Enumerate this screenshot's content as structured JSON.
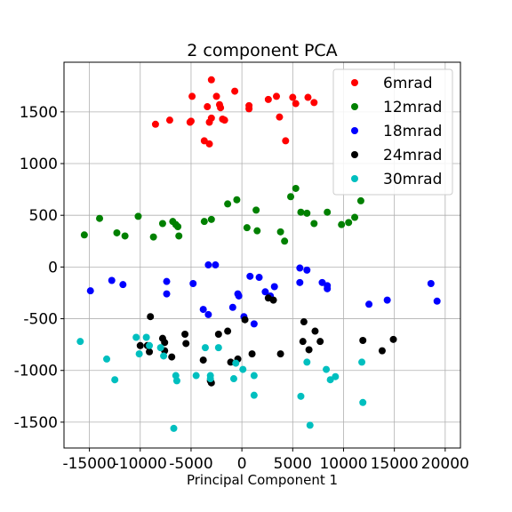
{
  "chart_data": {
    "type": "scatter",
    "title": "2 component PCA",
    "xlabel": "Principal Component 1",
    "ylabel": "",
    "xlim": [
      -17500,
      21500
    ],
    "ylim": [
      -1750,
      1980
    ],
    "xticks": [
      -15000,
      -10000,
      -5000,
      0,
      5000,
      10000,
      15000,
      20000
    ],
    "yticks": [
      -1500,
      -1000,
      -500,
      0,
      500,
      1000,
      1500
    ],
    "grid": true,
    "legend_position": "top-right",
    "series": [
      {
        "name": "6mrad",
        "color": "#ff0000",
        "points": [
          [
            -3000,
            1810
          ],
          [
            -8500,
            1380
          ],
          [
            -7100,
            1420
          ],
          [
            -5000,
            1410
          ],
          [
            -4900,
            1650
          ],
          [
            -3700,
            1220
          ],
          [
            -3400,
            1550
          ],
          [
            -3200,
            1400
          ],
          [
            -3200,
            1190
          ],
          [
            -3000,
            1440
          ],
          [
            -2500,
            1650
          ],
          [
            -2200,
            1570
          ],
          [
            -2100,
            1540
          ],
          [
            -1900,
            1430
          ],
          [
            -1700,
            1420
          ],
          [
            -700,
            1700
          ],
          [
            700,
            1560
          ],
          [
            700,
            1530
          ],
          [
            2600,
            1620
          ],
          [
            3400,
            1650
          ],
          [
            3700,
            1450
          ],
          [
            4300,
            1220
          ],
          [
            5000,
            1640
          ],
          [
            5300,
            1580
          ],
          [
            6500,
            1640
          ],
          [
            7100,
            1590
          ],
          [
            -5100,
            1400
          ]
        ]
      },
      {
        "name": "12mrad",
        "color": "#008000",
        "points": [
          [
            -15500,
            310
          ],
          [
            -14000,
            470
          ],
          [
            -12300,
            330
          ],
          [
            -11500,
            300
          ],
          [
            -10200,
            490
          ],
          [
            -8700,
            290
          ],
          [
            -7800,
            420
          ],
          [
            -6800,
            440
          ],
          [
            -6500,
            410
          ],
          [
            -6300,
            390
          ],
          [
            -6200,
            300
          ],
          [
            -3700,
            440
          ],
          [
            -3000,
            460
          ],
          [
            -1400,
            610
          ],
          [
            -500,
            650
          ],
          [
            500,
            380
          ],
          [
            1500,
            350
          ],
          [
            1400,
            550
          ],
          [
            3800,
            340
          ],
          [
            4200,
            250
          ],
          [
            4800,
            680
          ],
          [
            5300,
            760
          ],
          [
            5800,
            530
          ],
          [
            6400,
            520
          ],
          [
            7100,
            420
          ],
          [
            8400,
            530
          ],
          [
            9800,
            410
          ],
          [
            10500,
            430
          ],
          [
            11100,
            480
          ],
          [
            11700,
            640
          ]
        ]
      },
      {
        "name": "18mrad",
        "color": "#0000ff",
        "points": [
          [
            -14900,
            -230
          ],
          [
            -12800,
            -130
          ],
          [
            -11700,
            -170
          ],
          [
            -7400,
            -140
          ],
          [
            -7400,
            -260
          ],
          [
            -4800,
            -160
          ],
          [
            -3800,
            -410
          ],
          [
            -3300,
            -460
          ],
          [
            -3300,
            20
          ],
          [
            -2600,
            20
          ],
          [
            -900,
            -390
          ],
          [
            -400,
            -260
          ],
          [
            -300,
            -280
          ],
          [
            200,
            -480
          ],
          [
            800,
            -90
          ],
          [
            1200,
            -550
          ],
          [
            1700,
            -100
          ],
          [
            2300,
            -240
          ],
          [
            2800,
            -280
          ],
          [
            3200,
            -190
          ],
          [
            5700,
            -10
          ],
          [
            6400,
            -30
          ],
          [
            5700,
            -150
          ],
          [
            7900,
            -150
          ],
          [
            8400,
            -180
          ],
          [
            8400,
            -210
          ],
          [
            12500,
            -360
          ],
          [
            14300,
            -320
          ],
          [
            18600,
            -160
          ],
          [
            19200,
            -330
          ]
        ]
      },
      {
        "name": "24mrad",
        "color": "#000000",
        "points": [
          [
            -9000,
            -480
          ],
          [
            -10000,
            -760
          ],
          [
            -9300,
            -760
          ],
          [
            -9100,
            -820
          ],
          [
            -7800,
            -690
          ],
          [
            -7600,
            -730
          ],
          [
            -7600,
            -810
          ],
          [
            -6900,
            -870
          ],
          [
            -5600,
            -650
          ],
          [
            -5500,
            -740
          ],
          [
            -3800,
            -900
          ],
          [
            -3100,
            -1100
          ],
          [
            -3000,
            -1120
          ],
          [
            -2300,
            -650
          ],
          [
            -1400,
            -620
          ],
          [
            -1100,
            -920
          ],
          [
            -400,
            -890
          ],
          [
            300,
            -510
          ],
          [
            1000,
            -840
          ],
          [
            2600,
            -300
          ],
          [
            3100,
            -320
          ],
          [
            3800,
            -840
          ],
          [
            6100,
            -530
          ],
          [
            6000,
            -720
          ],
          [
            6600,
            -800
          ],
          [
            7200,
            -620
          ],
          [
            7700,
            -720
          ],
          [
            11900,
            -710
          ],
          [
            13800,
            -810
          ],
          [
            14900,
            -700
          ]
        ]
      },
      {
        "name": "30mrad",
        "color": "#00bfbf",
        "points": [
          [
            -15900,
            -720
          ],
          [
            -13300,
            -890
          ],
          [
            -12500,
            -1090
          ],
          [
            -10400,
            -680
          ],
          [
            -10100,
            -840
          ],
          [
            -9400,
            -680
          ],
          [
            -9100,
            -760
          ],
          [
            -8000,
            -780
          ],
          [
            -7700,
            -860
          ],
          [
            -6700,
            -1560
          ],
          [
            -6500,
            -1050
          ],
          [
            -6400,
            -1100
          ],
          [
            -4500,
            -1050
          ],
          [
            -3600,
            -780
          ],
          [
            -3100,
            -1050
          ],
          [
            -3100,
            -1080
          ],
          [
            -2300,
            -780
          ],
          [
            -800,
            -1080
          ],
          [
            -600,
            -930
          ],
          [
            100,
            -990
          ],
          [
            1200,
            -1050
          ],
          [
            1200,
            -1240
          ],
          [
            5800,
            -1250
          ],
          [
            6400,
            -920
          ],
          [
            6700,
            -1530
          ],
          [
            8300,
            -990
          ],
          [
            8700,
            -1090
          ],
          [
            9200,
            -1060
          ],
          [
            11800,
            -920
          ],
          [
            11900,
            -1310
          ]
        ]
      }
    ]
  }
}
